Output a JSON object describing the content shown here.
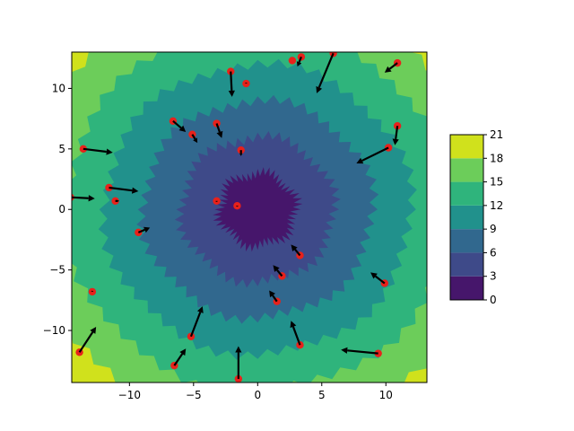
{
  "chart_data": {
    "type": "contour+quiver",
    "title": "",
    "xlabel": "",
    "ylabel": "",
    "xlim": [
      -14.5,
      13.2
    ],
    "ylim": [
      -14.3,
      13.0
    ],
    "x_ticks": [
      -10,
      -5,
      0,
      5,
      10
    ],
    "y_ticks": [
      -10,
      -5,
      0,
      5,
      10
    ],
    "contour": {
      "field": "radial distance from origin",
      "center": [
        0,
        0
      ],
      "levels": [
        0,
        3,
        6,
        9,
        12,
        15,
        18,
        21
      ],
      "colors": [
        "#46166b",
        "#3e4a89",
        "#31688e",
        "#21918c",
        "#2fb47c",
        "#6ccd5a",
        "#d0e11c"
      ]
    },
    "colorbar": {
      "ticks": [
        0,
        3,
        6,
        9,
        12,
        15,
        18,
        21
      ]
    },
    "points": [
      {
        "x": -13.9,
        "y": -11.8,
        "u": 1.3,
        "v": 2.1
      },
      {
        "x": -12.9,
        "y": -6.8,
        "u": 0.0,
        "v": 0.1
      },
      {
        "x": -13.6,
        "y": 5.0,
        "u": 2.3,
        "v": -0.3
      },
      {
        "x": -14.6,
        "y": 1.0,
        "u": 1.9,
        "v": -0.1
      },
      {
        "x": -11.6,
        "y": 1.8,
        "u": 2.3,
        "v": -0.3
      },
      {
        "x": -11.1,
        "y": 0.7,
        "u": 0.3,
        "v": 0.0
      },
      {
        "x": -9.3,
        "y": -1.9,
        "u": 0.9,
        "v": 0.4
      },
      {
        "x": -6.5,
        "y": -12.9,
        "u": 0.9,
        "v": 1.4
      },
      {
        "x": -5.2,
        "y": -10.5,
        "u": 0.9,
        "v": 2.5
      },
      {
        "x": -6.6,
        "y": 7.3,
        "u": 1.0,
        "v": -0.9
      },
      {
        "x": -5.1,
        "y": 6.2,
        "u": 0.4,
        "v": -0.7
      },
      {
        "x": -3.2,
        "y": 7.1,
        "u": 0.4,
        "v": -1.2
      },
      {
        "x": -2.1,
        "y": 11.4,
        "u": 0.1,
        "v": -2.1
      },
      {
        "x": -0.9,
        "y": 10.4,
        "u": 0.0,
        "v": 0.1
      },
      {
        "x": -1.3,
        "y": 4.9,
        "u": 0.0,
        "v": -0.5
      },
      {
        "x": -3.2,
        "y": 0.7,
        "u": 0.0,
        "v": -0.1
      },
      {
        "x": -1.6,
        "y": 0.3,
        "u": 0.0,
        "v": -0.1
      },
      {
        "x": -1.5,
        "y": -14.0,
        "u": 0.0,
        "v": 2.7
      },
      {
        "x": 1.5,
        "y": -7.6,
        "u": -0.6,
        "v": 0.9
      },
      {
        "x": 1.9,
        "y": -5.5,
        "u": -0.7,
        "v": 0.9
      },
      {
        "x": 3.3,
        "y": -3.8,
        "u": -0.7,
        "v": 0.9
      },
      {
        "x": 3.3,
        "y": -11.2,
        "u": -0.7,
        "v": 2.0
      },
      {
        "x": 2.7,
        "y": 12.3,
        "u": 0.0,
        "v": 0.0
      },
      {
        "x": 3.4,
        "y": 12.6,
        "u": -0.3,
        "v": -0.8
      },
      {
        "x": 5.9,
        "y": 12.9,
        "u": -1.3,
        "v": -3.3
      },
      {
        "x": 9.4,
        "y": -11.9,
        "u": -2.9,
        "v": 0.3
      },
      {
        "x": 9.9,
        "y": -6.1,
        "u": -1.1,
        "v": 0.9
      },
      {
        "x": 10.2,
        "y": 5.1,
        "u": -2.5,
        "v": -1.3
      },
      {
        "x": 10.9,
        "y": 6.9,
        "u": -0.2,
        "v": -1.6
      },
      {
        "x": 10.9,
        "y": 12.1,
        "u": -1.0,
        "v": -0.8
      }
    ]
  }
}
